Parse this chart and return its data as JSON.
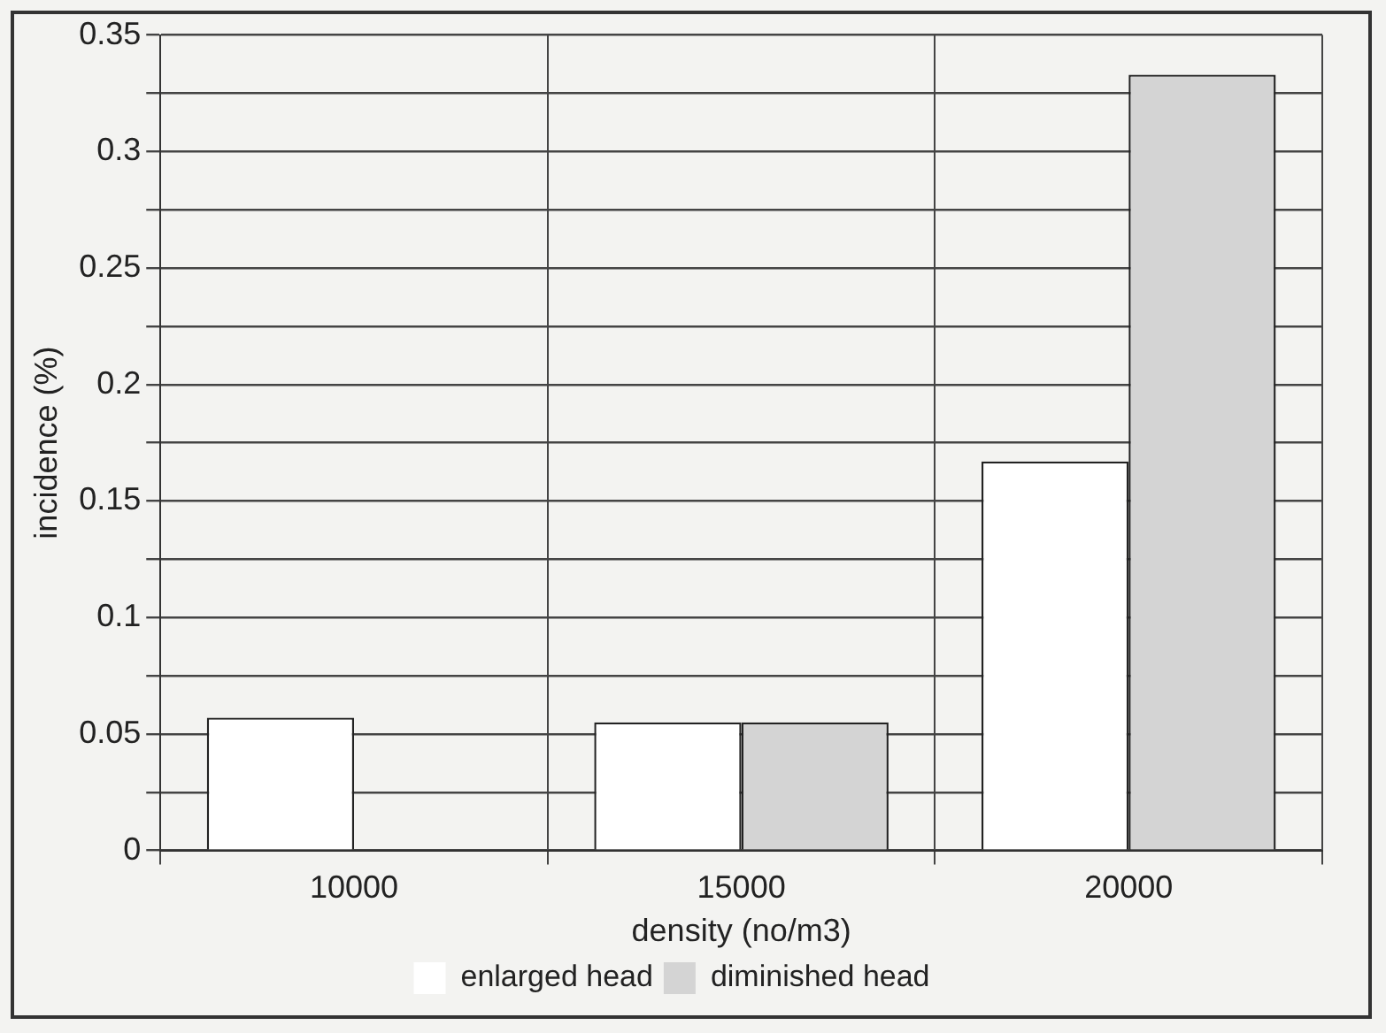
{
  "chart_data": {
    "type": "bar",
    "xlabel": "density (no/m3)",
    "ylabel": "incidence (%)",
    "categories": [
      "10000",
      "15000",
      "20000"
    ],
    "series": [
      {
        "name": "enlarged head",
        "color": "#ffffff",
        "values": [
          0.057,
          0.055,
          0.167
        ]
      },
      {
        "name": "diminished head",
        "color": "#d4d4d4",
        "values": [
          0,
          0.055,
          0.333
        ]
      }
    ],
    "ylim": [
      0,
      0.35
    ],
    "yticks": [
      0,
      {
        "value": 0.025,
        "label": null
      },
      0.05,
      {
        "value": 0.075,
        "label": null
      },
      0.1,
      {
        "value": 0.125,
        "label": null
      },
      0.15,
      {
        "value": 0.175,
        "label": null
      },
      0.2,
      {
        "value": 0.225,
        "label": null
      },
      0.25,
      {
        "value": 0.275,
        "label": null
      },
      0.3,
      {
        "value": 0.325,
        "label": null
      },
      0.35
    ],
    "grid": true,
    "legend": "bottom"
  }
}
